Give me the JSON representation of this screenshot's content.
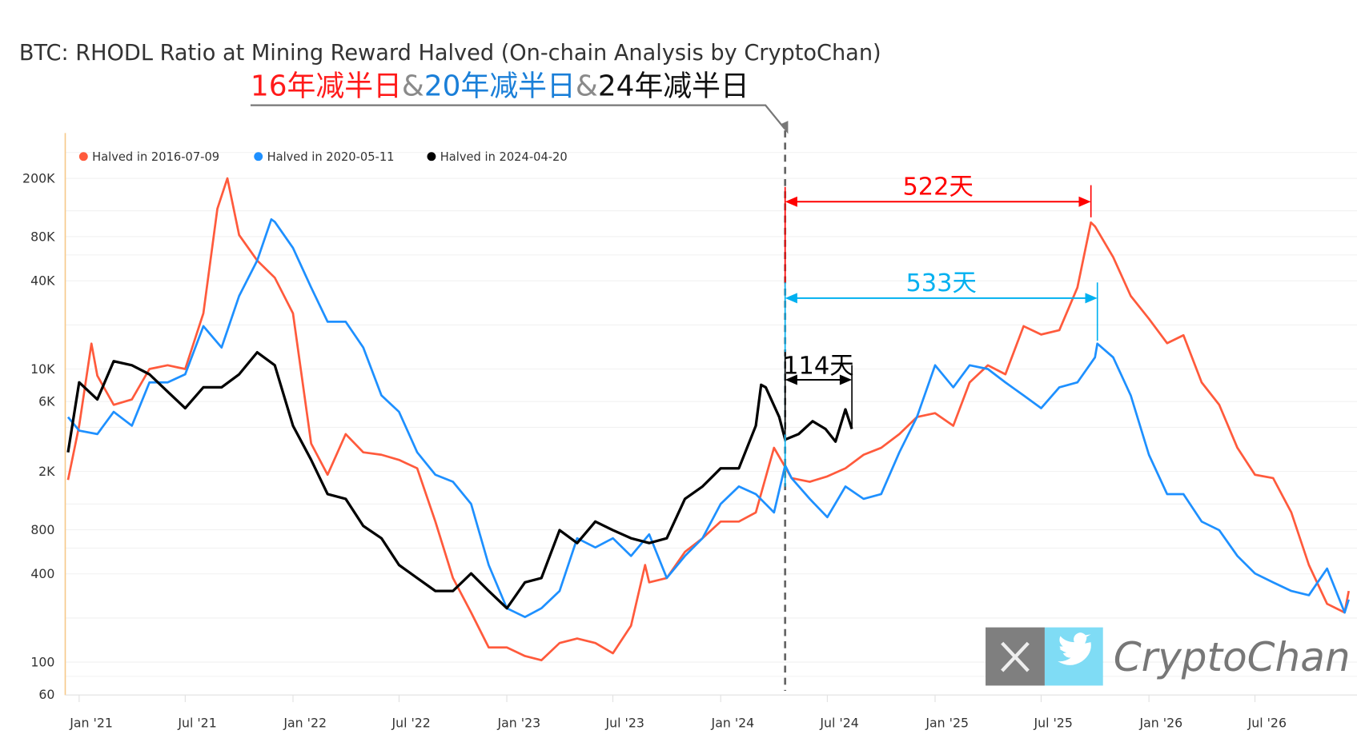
{
  "chart_data": {
    "type": "line",
    "title": "BTC: RHODL Ratio at Mining Reward Halved (On-chain Analysis by CryptoChan)",
    "subtitle_parts": [
      {
        "text": "16年减半日",
        "color": "#ff1a1a"
      },
      {
        "text": "&",
        "color": "#8a8a8a"
      },
      {
        "text": "20年减半日",
        "color": "#1a7fd8"
      },
      {
        "text": "&",
        "color": "#8a8a8a"
      },
      {
        "text": "24年减半日",
        "color": "#111111"
      }
    ],
    "xlabel": "",
    "ylabel": "",
    "y_scale": "log",
    "ylim": [
      60,
      400000
    ],
    "xlim": [
      "2020-12-15",
      "2026-12-10"
    ],
    "y_ticks": [
      {
        "value": 200000,
        "label": "200K"
      },
      {
        "value": 80000,
        "label": "80K"
      },
      {
        "value": 40000,
        "label": "40K"
      },
      {
        "value": 10000,
        "label": "10K"
      },
      {
        "value": 6000,
        "label": "6K"
      },
      {
        "value": 2000,
        "label": "2K"
      },
      {
        "value": 800,
        "label": "800"
      },
      {
        "value": 400,
        "label": "400"
      },
      {
        "value": 100,
        "label": "100"
      },
      {
        "value": 60,
        "label": "60"
      }
    ],
    "x_ticks": [
      {
        "date": "2021-01-01",
        "label": "Jan '21"
      },
      {
        "date": "2021-07-01",
        "label": "Jul '21"
      },
      {
        "date": "2022-01-01",
        "label": "Jan '22"
      },
      {
        "date": "2022-07-01",
        "label": "Jul '22"
      },
      {
        "date": "2023-01-01",
        "label": "Jan '23"
      },
      {
        "date": "2023-07-01",
        "label": "Jul '23"
      },
      {
        "date": "2024-01-01",
        "label": "Jan '24"
      },
      {
        "date": "2024-07-01",
        "label": "Jul '24"
      },
      {
        "date": "2025-01-01",
        "label": "Jan '25"
      },
      {
        "date": "2025-07-01",
        "label": "Jul '25"
      },
      {
        "date": "2026-01-01",
        "label": "Jan '26"
      },
      {
        "date": "2026-07-01",
        "label": "Jul '26"
      }
    ],
    "grid": true,
    "legend_position": "top-left",
    "series": [
      {
        "name": "Halved in 2016-07-09",
        "color": "#ff5a3c",
        "points": [
          [
            "2020-12-13",
            1750
          ],
          [
            "2021-01-01",
            4100
          ],
          [
            "2021-01-22",
            14900
          ],
          [
            "2021-02-01",
            9000
          ],
          [
            "2021-03-01",
            5700
          ],
          [
            "2021-04-01",
            6200
          ],
          [
            "2021-05-01",
            10000
          ],
          [
            "2021-06-01",
            10600
          ],
          [
            "2021-07-01",
            10000
          ],
          [
            "2021-08-01",
            24000
          ],
          [
            "2021-08-25",
            124000
          ],
          [
            "2021-09-11",
            200000
          ],
          [
            "2021-10-01",
            82000
          ],
          [
            "2021-11-01",
            55000
          ],
          [
            "2021-12-01",
            42000
          ],
          [
            "2022-01-01",
            24000
          ],
          [
            "2022-02-01",
            3100
          ],
          [
            "2022-03-01",
            1900
          ],
          [
            "2022-04-01",
            3600
          ],
          [
            "2022-05-01",
            2700
          ],
          [
            "2022-06-01",
            2600
          ],
          [
            "2022-07-01",
            2400
          ],
          [
            "2022-08-01",
            2100
          ],
          [
            "2022-09-01",
            910
          ],
          [
            "2022-10-01",
            375
          ],
          [
            "2022-11-01",
            218
          ],
          [
            "2022-12-01",
            126
          ],
          [
            "2023-01-01",
            126
          ],
          [
            "2023-02-01",
            110
          ],
          [
            "2023-03-01",
            103
          ],
          [
            "2023-04-01",
            135
          ],
          [
            "2023-05-01",
            145
          ],
          [
            "2023-06-01",
            135
          ],
          [
            "2023-07-01",
            115
          ],
          [
            "2023-08-01",
            177
          ],
          [
            "2023-08-25",
            460
          ],
          [
            "2023-09-01",
            350
          ],
          [
            "2023-10-01",
            375
          ],
          [
            "2023-11-01",
            565
          ],
          [
            "2023-12-01",
            700
          ],
          [
            "2024-01-01",
            910
          ],
          [
            "2024-02-01",
            910
          ],
          [
            "2024-03-01",
            1050
          ],
          [
            "2024-04-01",
            2900
          ],
          [
            "2024-05-01",
            1800
          ],
          [
            "2024-06-01",
            1700
          ],
          [
            "2024-07-01",
            1850
          ],
          [
            "2024-08-01",
            2100
          ],
          [
            "2024-09-01",
            2600
          ],
          [
            "2024-10-01",
            2900
          ],
          [
            "2024-11-01",
            3600
          ],
          [
            "2024-12-01",
            4700
          ],
          [
            "2025-01-01",
            5000
          ],
          [
            "2025-02-01",
            4100
          ],
          [
            "2025-03-01",
            8100
          ],
          [
            "2025-04-01",
            10600
          ],
          [
            "2025-05-01",
            9200
          ],
          [
            "2025-06-01",
            19600
          ],
          [
            "2025-07-01",
            17200
          ],
          [
            "2025-08-01",
            18400
          ],
          [
            "2025-09-01",
            36000
          ],
          [
            "2025-09-24",
            100000
          ],
          [
            "2025-10-01",
            94000
          ],
          [
            "2025-11-01",
            58000
          ],
          [
            "2025-12-01",
            31500
          ],
          [
            "2026-01-01",
            22000
          ],
          [
            "2026-02-01",
            15000
          ],
          [
            "2026-03-01",
            17000
          ],
          [
            "2026-04-01",
            8100
          ],
          [
            "2026-05-01",
            5700
          ],
          [
            "2026-06-01",
            2900
          ],
          [
            "2026-07-01",
            1900
          ],
          [
            "2026-08-01",
            1800
          ],
          [
            "2026-09-01",
            1050
          ],
          [
            "2026-10-01",
            460
          ],
          [
            "2026-11-01",
            250
          ],
          [
            "2026-12-01",
            218
          ],
          [
            "2026-12-08",
            306
          ]
        ]
      },
      {
        "name": "Halved in 2020-05-11",
        "color": "#1e90ff",
        "points": [
          [
            "2020-12-13",
            4700
          ],
          [
            "2021-01-01",
            3800
          ],
          [
            "2021-02-01",
            3600
          ],
          [
            "2021-03-01",
            5100
          ],
          [
            "2021-04-01",
            4100
          ],
          [
            "2021-05-01",
            8100
          ],
          [
            "2021-06-01",
            8100
          ],
          [
            "2021-07-01",
            9200
          ],
          [
            "2021-08-01",
            19600
          ],
          [
            "2021-09-01",
            14000
          ],
          [
            "2021-10-01",
            31500
          ],
          [
            "2021-11-01",
            55000
          ],
          [
            "2021-11-25",
            105000
          ],
          [
            "2021-12-01",
            101000
          ],
          [
            "2022-01-01",
            67000
          ],
          [
            "2022-02-01",
            36000
          ],
          [
            "2022-03-01",
            21000
          ],
          [
            "2022-04-01",
            21000
          ],
          [
            "2022-05-01",
            14000
          ],
          [
            "2022-06-01",
            6600
          ],
          [
            "2022-07-01",
            5100
          ],
          [
            "2022-08-01",
            2700
          ],
          [
            "2022-09-01",
            1900
          ],
          [
            "2022-10-01",
            1700
          ],
          [
            "2022-11-01",
            1200
          ],
          [
            "2022-12-01",
            460
          ],
          [
            "2023-01-01",
            233
          ],
          [
            "2023-02-01",
            203
          ],
          [
            "2023-03-01",
            233
          ],
          [
            "2023-04-01",
            306
          ],
          [
            "2023-05-01",
            700
          ],
          [
            "2023-06-01",
            606
          ],
          [
            "2023-07-01",
            700
          ],
          [
            "2023-08-01",
            530
          ],
          [
            "2023-09-01",
            745
          ],
          [
            "2023-10-01",
            375
          ],
          [
            "2023-11-01",
            530
          ],
          [
            "2023-12-01",
            700
          ],
          [
            "2024-01-01",
            1200
          ],
          [
            "2024-02-01",
            1580
          ],
          [
            "2024-03-01",
            1400
          ],
          [
            "2024-04-01",
            1050
          ],
          [
            "2024-04-20",
            2200
          ],
          [
            "2024-05-01",
            1800
          ],
          [
            "2024-06-01",
            1300
          ],
          [
            "2024-07-01",
            975
          ],
          [
            "2024-08-01",
            1580
          ],
          [
            "2024-09-01",
            1300
          ],
          [
            "2024-10-01",
            1400
          ],
          [
            "2024-11-01",
            2700
          ],
          [
            "2024-12-01",
            4700
          ],
          [
            "2025-01-01",
            10600
          ],
          [
            "2025-02-01",
            7500
          ],
          [
            "2025-03-01",
            10600
          ],
          [
            "2025-04-01",
            10000
          ],
          [
            "2025-05-01",
            8100
          ],
          [
            "2025-06-01",
            6600
          ],
          [
            "2025-07-01",
            5400
          ],
          [
            "2025-08-01",
            7500
          ],
          [
            "2025-09-01",
            8100
          ],
          [
            "2025-10-01",
            12000
          ],
          [
            "2025-10-05",
            14900
          ],
          [
            "2025-11-01",
            12000
          ],
          [
            "2025-12-01",
            6600
          ],
          [
            "2026-01-01",
            2600
          ],
          [
            "2026-02-01",
            1400
          ],
          [
            "2026-03-01",
            1400
          ],
          [
            "2026-04-01",
            910
          ],
          [
            "2026-05-01",
            795
          ],
          [
            "2026-06-01",
            530
          ],
          [
            "2026-07-01",
            403
          ],
          [
            "2026-08-01",
            350
          ],
          [
            "2026-09-01",
            306
          ],
          [
            "2026-10-01",
            286
          ],
          [
            "2026-11-01",
            435
          ],
          [
            "2026-12-01",
            218
          ],
          [
            "2026-12-08",
            267
          ]
        ]
      },
      {
        "name": "Halved in 2024-04-20",
        "color": "#000000",
        "points": [
          [
            "2020-12-13",
            2700
          ],
          [
            "2021-01-01",
            8100
          ],
          [
            "2021-02-01",
            6200
          ],
          [
            "2021-03-01",
            11300
          ],
          [
            "2021-04-01",
            10600
          ],
          [
            "2021-05-01",
            9200
          ],
          [
            "2021-06-01",
            7000
          ],
          [
            "2021-07-01",
            5400
          ],
          [
            "2021-08-01",
            7500
          ],
          [
            "2021-09-01",
            7500
          ],
          [
            "2021-10-01",
            9200
          ],
          [
            "2021-11-01",
            13000
          ],
          [
            "2021-12-01",
            10600
          ],
          [
            "2022-01-01",
            4100
          ],
          [
            "2022-02-01",
            2400
          ],
          [
            "2022-03-01",
            1400
          ],
          [
            "2022-04-01",
            1300
          ],
          [
            "2022-05-01",
            850
          ],
          [
            "2022-06-01",
            700
          ],
          [
            "2022-07-01",
            460
          ],
          [
            "2022-08-01",
            375
          ],
          [
            "2022-09-01",
            306
          ],
          [
            "2022-10-01",
            306
          ],
          [
            "2022-11-01",
            403
          ],
          [
            "2022-12-01",
            306
          ],
          [
            "2023-01-01",
            233
          ],
          [
            "2023-02-01",
            350
          ],
          [
            "2023-03-01",
            375
          ],
          [
            "2023-04-01",
            795
          ],
          [
            "2023-05-01",
            650
          ],
          [
            "2023-06-01",
            910
          ],
          [
            "2023-07-01",
            795
          ],
          [
            "2023-08-01",
            700
          ],
          [
            "2023-09-01",
            650
          ],
          [
            "2023-10-01",
            700
          ],
          [
            "2023-11-01",
            1300
          ],
          [
            "2023-12-01",
            1580
          ],
          [
            "2024-01-01",
            2100
          ],
          [
            "2024-02-01",
            2100
          ],
          [
            "2024-03-01",
            4100
          ],
          [
            "2024-03-10",
            7800
          ],
          [
            "2024-03-18",
            7500
          ],
          [
            "2024-04-10",
            4700
          ],
          [
            "2024-04-20",
            3300
          ],
          [
            "2024-05-13",
            3600
          ],
          [
            "2024-06-06",
            4400
          ],
          [
            "2024-06-28",
            3900
          ],
          [
            "2024-07-15",
            3200
          ],
          [
            "2024-08-01",
            5300
          ],
          [
            "2024-08-12",
            3900
          ]
        ]
      }
    ],
    "annotations": {
      "halving_date": "2024-04-20",
      "red_span": {
        "label": "522天",
        "from": "2024-04-20",
        "to": "2025-09-24",
        "color": "#ff0000"
      },
      "blue_span": {
        "label": "533天",
        "from": "2024-04-20",
        "to": "2025-10-05",
        "color": "#00b0f0"
      },
      "black_span": {
        "label": "114天",
        "from": "2024-04-20",
        "to": "2024-08-12",
        "color": "#000000"
      }
    }
  },
  "watermark": {
    "text": "CryptoChan",
    "x_icon": "x-logo-icon",
    "bird_icon": "twitter-bird-icon",
    "x_bg": "#7f7f7f",
    "bird_bg": "#7fdcf5"
  }
}
